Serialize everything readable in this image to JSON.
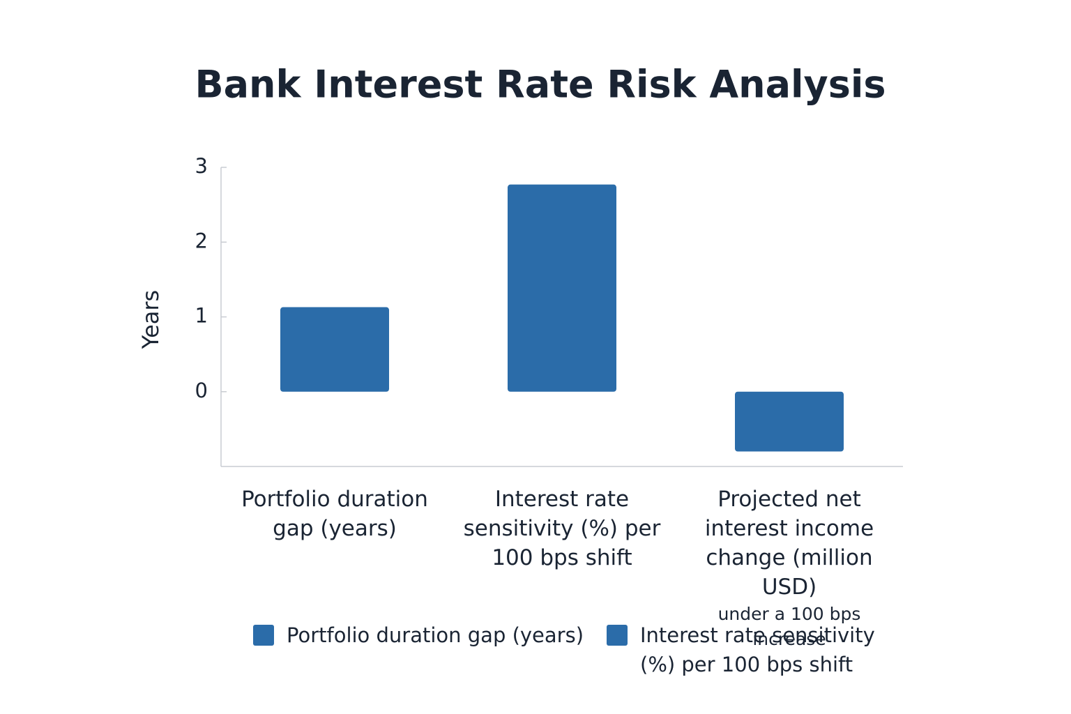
{
  "chart_data": {
    "type": "bar",
    "title": "Bank Interest Rate Risk Analysis",
    "y_label": "Years",
    "categories": [
      "Portfolio duration gap (years)",
      "Interest rate sensitivity (%) per 100 bps shift",
      "Projected net interest income change (million USD)"
    ],
    "category_notes": [
      null,
      null,
      "under a 100 bps increase"
    ],
    "values": [
      1.13,
      2.77,
      -0.8
    ],
    "color": "#2b6ca9",
    "ylim": [
      -1,
      3
    ],
    "yticks": [
      0,
      1,
      2,
      3
    ],
    "legend": [
      {
        "name": "Portfolio duration gap (years)",
        "color": "#2b6ca9"
      },
      {
        "name": "Interest rate sensitivity (%) per 100 bps shift",
        "color": "#2b6ca9"
      }
    ]
  }
}
